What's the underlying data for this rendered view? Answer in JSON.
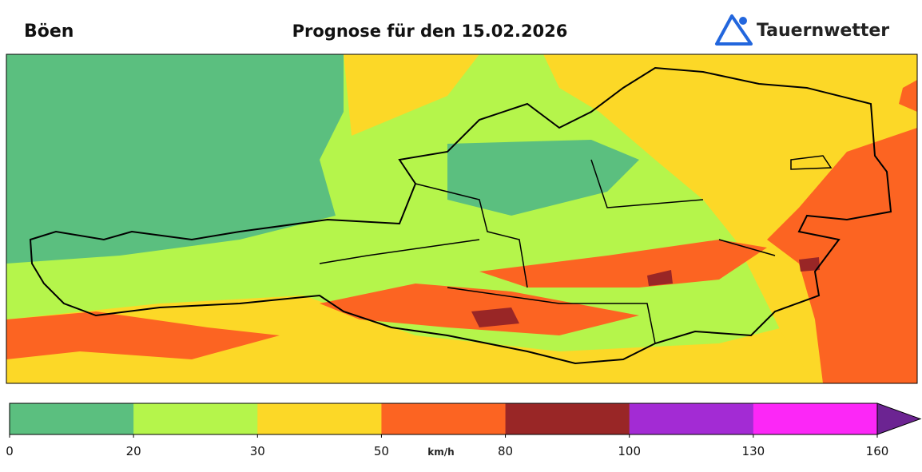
{
  "header": {
    "title": "Böen",
    "subtitle": "Prognose für den 15.02.2026",
    "logo": "Tauernwetter"
  },
  "colorbar": {
    "unit": "km/h",
    "ticks": [
      0,
      20,
      30,
      50,
      80,
      100,
      130,
      160
    ],
    "colors": [
      "#5bbf7f",
      "#b5f54b",
      "#fcd827",
      "#fc6422",
      "#992626",
      "#a32bd4",
      "#fc27f7"
    ],
    "extend_color": "#6c2492"
  }
}
